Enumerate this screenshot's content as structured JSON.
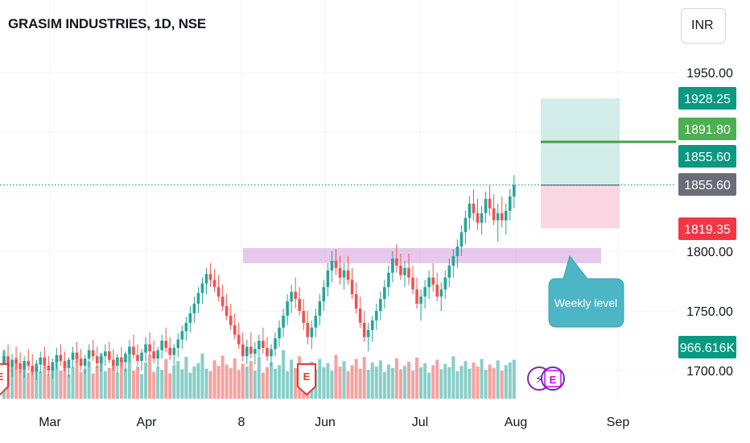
{
  "header": {
    "title": "GRASIM INDUSTRIES, 1D, NSE",
    "currency": "INR"
  },
  "colors": {
    "up": "#26a69a",
    "down": "#ef5350",
    "grid": "#f0f3fa",
    "zone": "#ce93d8",
    "target": "#80cbc4",
    "stop": "#f8bbd0",
    "line": "#43a047",
    "note": "#4db6c6"
  },
  "price_tags": [
    {
      "label": "1928.25",
      "color": "#089981"
    },
    {
      "label": "1891.80",
      "color": "#4caf50"
    },
    {
      "label": "1855.60",
      "color": "#089981"
    },
    {
      "label": "1855.60",
      "color": "#6a6d78"
    },
    {
      "label": "1819.35",
      "color": "#f23645"
    },
    {
      "label": "966.616K",
      "color": "#089981"
    }
  ],
  "annotation": {
    "text": "Weekly level"
  },
  "earnings_marks": [
    "E",
    "E",
    "E"
  ],
  "dividend_mark": "⚡",
  "chart_data": {
    "type": "candlestick",
    "title": "GRASIM INDUSTRIES, 1D, NSE",
    "y_ticks": [
      1700,
      1750,
      1800,
      1950
    ],
    "y_tick_labels": [
      "1700.00",
      "1750.00",
      "1800.00",
      "1950.00"
    ],
    "x_tick_labels": [
      "Mar",
      "Apr",
      "8",
      "Jun",
      "Jul",
      "Aug",
      "Sep"
    ],
    "ylim": [
      1675,
      1985
    ],
    "levels": {
      "weekly_zone": [
        1790,
        1800
      ],
      "target": 1928.25,
      "entry": 1855.6,
      "stop": 1819.35,
      "horizontal_line": 1891.8,
      "last_price": 1855.6
    },
    "last_volume": "966.616K",
    "series": [
      {
        "o": 1705,
        "h": 1718,
        "l": 1698,
        "c": 1712
      },
      {
        "o": 1712,
        "h": 1722,
        "l": 1700,
        "c": 1703
      },
      {
        "o": 1703,
        "h": 1714,
        "l": 1695,
        "c": 1709
      },
      {
        "o": 1709,
        "h": 1720,
        "l": 1701,
        "c": 1706
      },
      {
        "o": 1706,
        "h": 1715,
        "l": 1698,
        "c": 1701
      },
      {
        "o": 1701,
        "h": 1712,
        "l": 1694,
        "c": 1708
      },
      {
        "o": 1708,
        "h": 1718,
        "l": 1700,
        "c": 1704
      },
      {
        "o": 1704,
        "h": 1714,
        "l": 1696,
        "c": 1699
      },
      {
        "o": 1699,
        "h": 1709,
        "l": 1692,
        "c": 1705
      },
      {
        "o": 1705,
        "h": 1716,
        "l": 1698,
        "c": 1711
      },
      {
        "o": 1711,
        "h": 1720,
        "l": 1702,
        "c": 1704
      },
      {
        "o": 1704,
        "h": 1712,
        "l": 1696,
        "c": 1700
      },
      {
        "o": 1700,
        "h": 1710,
        "l": 1693,
        "c": 1707
      },
      {
        "o": 1707,
        "h": 1719,
        "l": 1701,
        "c": 1713
      },
      {
        "o": 1713,
        "h": 1722,
        "l": 1704,
        "c": 1708
      },
      {
        "o": 1708,
        "h": 1716,
        "l": 1699,
        "c": 1702
      },
      {
        "o": 1702,
        "h": 1711,
        "l": 1695,
        "c": 1709
      },
      {
        "o": 1709,
        "h": 1720,
        "l": 1702,
        "c": 1715
      },
      {
        "o": 1715,
        "h": 1724,
        "l": 1706,
        "c": 1710
      },
      {
        "o": 1710,
        "h": 1718,
        "l": 1700,
        "c": 1704
      },
      {
        "o": 1704,
        "h": 1713,
        "l": 1697,
        "c": 1710
      },
      {
        "o": 1710,
        "h": 1722,
        "l": 1703,
        "c": 1717
      },
      {
        "o": 1717,
        "h": 1726,
        "l": 1708,
        "c": 1712
      },
      {
        "o": 1712,
        "h": 1720,
        "l": 1702,
        "c": 1706
      },
      {
        "o": 1706,
        "h": 1715,
        "l": 1699,
        "c": 1712
      },
      {
        "o": 1712,
        "h": 1722,
        "l": 1704,
        "c": 1716
      },
      {
        "o": 1716,
        "h": 1724,
        "l": 1706,
        "c": 1709
      },
      {
        "o": 1709,
        "h": 1718,
        "l": 1700,
        "c": 1704
      },
      {
        "o": 1704,
        "h": 1714,
        "l": 1698,
        "c": 1711
      },
      {
        "o": 1711,
        "h": 1720,
        "l": 1703,
        "c": 1707
      },
      {
        "o": 1707,
        "h": 1716,
        "l": 1699,
        "c": 1714
      },
      {
        "o": 1714,
        "h": 1726,
        "l": 1707,
        "c": 1720
      },
      {
        "o": 1720,
        "h": 1730,
        "l": 1710,
        "c": 1713
      },
      {
        "o": 1713,
        "h": 1722,
        "l": 1704,
        "c": 1708
      },
      {
        "o": 1708,
        "h": 1718,
        "l": 1700,
        "c": 1715
      },
      {
        "o": 1715,
        "h": 1728,
        "l": 1708,
        "c": 1722
      },
      {
        "o": 1722,
        "h": 1732,
        "l": 1712,
        "c": 1716
      },
      {
        "o": 1716,
        "h": 1725,
        "l": 1706,
        "c": 1710
      },
      {
        "o": 1710,
        "h": 1720,
        "l": 1702,
        "c": 1717
      },
      {
        "o": 1717,
        "h": 1730,
        "l": 1710,
        "c": 1725
      },
      {
        "o": 1725,
        "h": 1736,
        "l": 1715,
        "c": 1719
      },
      {
        "o": 1719,
        "h": 1728,
        "l": 1709,
        "c": 1713
      },
      {
        "o": 1713,
        "h": 1722,
        "l": 1705,
        "c": 1719
      },
      {
        "o": 1719,
        "h": 1731,
        "l": 1711,
        "c": 1726
      },
      {
        "o": 1726,
        "h": 1738,
        "l": 1718,
        "c": 1733
      },
      {
        "o": 1733,
        "h": 1745,
        "l": 1725,
        "c": 1740
      },
      {
        "o": 1740,
        "h": 1754,
        "l": 1732,
        "c": 1748
      },
      {
        "o": 1748,
        "h": 1762,
        "l": 1740,
        "c": 1756
      },
      {
        "o": 1756,
        "h": 1770,
        "l": 1748,
        "c": 1765
      },
      {
        "o": 1765,
        "h": 1778,
        "l": 1756,
        "c": 1773
      },
      {
        "o": 1773,
        "h": 1786,
        "l": 1764,
        "c": 1781
      },
      {
        "o": 1781,
        "h": 1790,
        "l": 1770,
        "c": 1776
      },
      {
        "o": 1776,
        "h": 1785,
        "l": 1766,
        "c": 1770
      },
      {
        "o": 1770,
        "h": 1780,
        "l": 1758,
        "c": 1762
      },
      {
        "o": 1762,
        "h": 1772,
        "l": 1750,
        "c": 1754
      },
      {
        "o": 1754,
        "h": 1764,
        "l": 1742,
        "c": 1746
      },
      {
        "o": 1746,
        "h": 1756,
        "l": 1734,
        "c": 1738
      },
      {
        "o": 1738,
        "h": 1748,
        "l": 1726,
        "c": 1730
      },
      {
        "o": 1730,
        "h": 1740,
        "l": 1718,
        "c": 1722
      },
      {
        "o": 1722,
        "h": 1732,
        "l": 1708,
        "c": 1712
      },
      {
        "o": 1712,
        "h": 1726,
        "l": 1705,
        "c": 1720
      },
      {
        "o": 1720,
        "h": 1732,
        "l": 1710,
        "c": 1714
      },
      {
        "o": 1714,
        "h": 1724,
        "l": 1705,
        "c": 1718
      },
      {
        "o": 1718,
        "h": 1730,
        "l": 1710,
        "c": 1725
      },
      {
        "o": 1725,
        "h": 1736,
        "l": 1714,
        "c": 1719
      },
      {
        "o": 1719,
        "h": 1728,
        "l": 1708,
        "c": 1712
      },
      {
        "o": 1712,
        "h": 1722,
        "l": 1704,
        "c": 1718
      },
      {
        "o": 1718,
        "h": 1732,
        "l": 1712,
        "c": 1727
      },
      {
        "o": 1727,
        "h": 1742,
        "l": 1720,
        "c": 1736
      },
      {
        "o": 1736,
        "h": 1752,
        "l": 1728,
        "c": 1746
      },
      {
        "o": 1746,
        "h": 1764,
        "l": 1738,
        "c": 1758
      },
      {
        "o": 1758,
        "h": 1772,
        "l": 1748,
        "c": 1766
      },
      {
        "o": 1766,
        "h": 1778,
        "l": 1752,
        "c": 1760
      },
      {
        "o": 1760,
        "h": 1770,
        "l": 1746,
        "c": 1750
      },
      {
        "o": 1750,
        "h": 1760,
        "l": 1734,
        "c": 1740
      },
      {
        "o": 1740,
        "h": 1750,
        "l": 1722,
        "c": 1728
      },
      {
        "o": 1728,
        "h": 1742,
        "l": 1718,
        "c": 1736
      },
      {
        "o": 1736,
        "h": 1752,
        "l": 1728,
        "c": 1746
      },
      {
        "o": 1746,
        "h": 1764,
        "l": 1738,
        "c": 1758
      },
      {
        "o": 1758,
        "h": 1776,
        "l": 1750,
        "c": 1770
      },
      {
        "o": 1770,
        "h": 1790,
        "l": 1762,
        "c": 1784
      },
      {
        "o": 1784,
        "h": 1800,
        "l": 1774,
        "c": 1792
      },
      {
        "o": 1792,
        "h": 1802,
        "l": 1780,
        "c": 1786
      },
      {
        "o": 1786,
        "h": 1796,
        "l": 1772,
        "c": 1778
      },
      {
        "o": 1778,
        "h": 1790,
        "l": 1768,
        "c": 1784
      },
      {
        "o": 1784,
        "h": 1796,
        "l": 1772,
        "c": 1776
      },
      {
        "o": 1776,
        "h": 1786,
        "l": 1760,
        "c": 1764
      },
      {
        "o": 1764,
        "h": 1774,
        "l": 1748,
        "c": 1752
      },
      {
        "o": 1752,
        "h": 1762,
        "l": 1736,
        "c": 1740
      },
      {
        "o": 1740,
        "h": 1750,
        "l": 1724,
        "c": 1728
      },
      {
        "o": 1728,
        "h": 1740,
        "l": 1716,
        "c": 1734
      },
      {
        "o": 1734,
        "h": 1746,
        "l": 1724,
        "c": 1742
      },
      {
        "o": 1742,
        "h": 1756,
        "l": 1734,
        "c": 1750
      },
      {
        "o": 1750,
        "h": 1766,
        "l": 1742,
        "c": 1760
      },
      {
        "o": 1760,
        "h": 1776,
        "l": 1752,
        "c": 1770
      },
      {
        "o": 1770,
        "h": 1788,
        "l": 1762,
        "c": 1782
      },
      {
        "o": 1782,
        "h": 1800,
        "l": 1774,
        "c": 1794
      },
      {
        "o": 1794,
        "h": 1806,
        "l": 1782,
        "c": 1788
      },
      {
        "o": 1788,
        "h": 1798,
        "l": 1776,
        "c": 1780
      },
      {
        "o": 1780,
        "h": 1792,
        "l": 1770,
        "c": 1786
      },
      {
        "o": 1786,
        "h": 1798,
        "l": 1772,
        "c": 1778
      },
      {
        "o": 1778,
        "h": 1788,
        "l": 1764,
        "c": 1768
      },
      {
        "o": 1768,
        "h": 1778,
        "l": 1752,
        "c": 1756
      },
      {
        "o": 1756,
        "h": 1768,
        "l": 1742,
        "c": 1762
      },
      {
        "o": 1762,
        "h": 1776,
        "l": 1752,
        "c": 1770
      },
      {
        "o": 1770,
        "h": 1784,
        "l": 1760,
        "c": 1778
      },
      {
        "o": 1778,
        "h": 1790,
        "l": 1766,
        "c": 1772
      },
      {
        "o": 1772,
        "h": 1782,
        "l": 1758,
        "c": 1762
      },
      {
        "o": 1762,
        "h": 1774,
        "l": 1750,
        "c": 1768
      },
      {
        "o": 1768,
        "h": 1784,
        "l": 1760,
        "c": 1778
      },
      {
        "o": 1778,
        "h": 1794,
        "l": 1770,
        "c": 1788
      },
      {
        "o": 1788,
        "h": 1802,
        "l": 1778,
        "c": 1796
      },
      {
        "o": 1796,
        "h": 1810,
        "l": 1786,
        "c": 1804
      },
      {
        "o": 1804,
        "h": 1822,
        "l": 1796,
        "c": 1816
      },
      {
        "o": 1816,
        "h": 1834,
        "l": 1806,
        "c": 1828
      },
      {
        "o": 1828,
        "h": 1846,
        "l": 1818,
        "c": 1840
      },
      {
        "o": 1840,
        "h": 1852,
        "l": 1826,
        "c": 1832
      },
      {
        "o": 1832,
        "h": 1844,
        "l": 1818,
        "c": 1824
      },
      {
        "o": 1824,
        "h": 1838,
        "l": 1814,
        "c": 1832
      },
      {
        "o": 1832,
        "h": 1850,
        "l": 1824,
        "c": 1844
      },
      {
        "o": 1844,
        "h": 1856,
        "l": 1830,
        "c": 1836
      },
      {
        "o": 1836,
        "h": 1848,
        "l": 1822,
        "c": 1826
      },
      {
        "o": 1826,
        "h": 1840,
        "l": 1808,
        "c": 1832
      },
      {
        "o": 1832,
        "h": 1846,
        "l": 1820,
        "c": 1826
      },
      {
        "o": 1826,
        "h": 1840,
        "l": 1814,
        "c": 1834
      },
      {
        "o": 1834,
        "h": 1852,
        "l": 1826,
        "c": 1846
      },
      {
        "o": 1846,
        "h": 1864,
        "l": 1836,
        "c": 1855.6
      }
    ],
    "volumes": [
      70,
      55,
      48,
      60,
      42,
      50,
      38,
      45,
      52,
      40,
      47,
      36,
      44,
      58,
      41,
      49,
      35,
      46,
      62,
      39,
      43,
      54,
      37,
      48,
      66,
      40,
      45,
      51,
      38,
      57,
      44,
      72,
      41,
      47,
      36,
      53,
      64,
      39,
      46,
      42,
      58,
      37,
      49,
      55,
      43,
      61,
      38,
      47,
      52,
      66,
      44,
      40,
      56,
      48,
      63,
      50,
      45,
      59,
      42,
      51,
      47,
      55,
      41,
      60,
      38,
      46,
      53,
      44,
      49,
      71,
      40,
      57,
      45,
      62,
      39,
      48,
      54,
      43,
      58,
      46,
      52,
      41,
      64,
      47,
      55,
      40,
      49,
      58,
      44,
      61,
      42,
      53,
      47,
      56,
      39,
      50,
      45,
      59,
      43,
      48,
      54,
      41,
      60,
      46,
      52,
      38,
      49,
      57,
      43,
      51,
      46,
      62,
      40,
      48,
      55,
      44,
      53,
      47,
      58,
      42,
      50,
      45,
      56,
      41,
      49,
      53,
      57
    ]
  }
}
